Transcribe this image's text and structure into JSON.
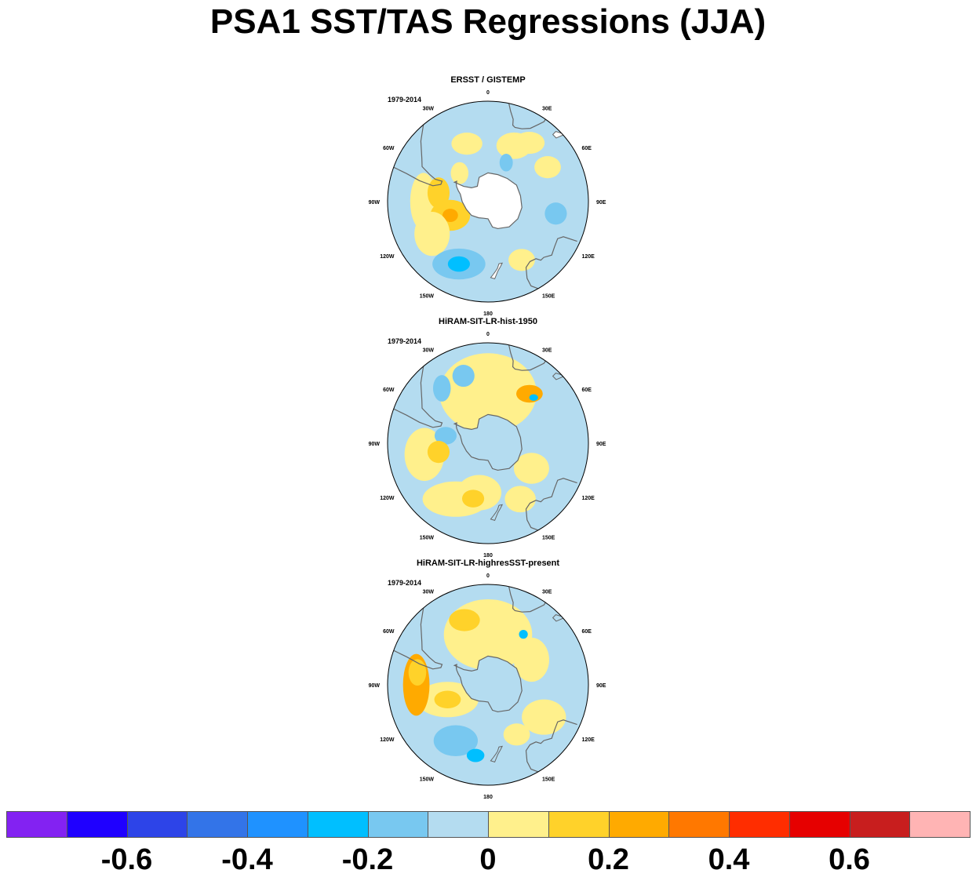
{
  "title": "PSA1 SST/TAS Regressions (JJA)",
  "chart_data": [
    {
      "type": "heatmap",
      "projection": "south-polar-stereographic",
      "title": "ERSST / GISTEMP",
      "period": "1979-2014",
      "lon_labels": [
        "0",
        "30E",
        "60E",
        "90E",
        "120E",
        "150E",
        "180",
        "150W",
        "120W",
        "90W",
        "60W",
        "30W"
      ],
      "colors": {
        "land": "#ffffff",
        "ocean_bg": "#b4dcf0"
      },
      "blobs": [
        {
          "lon": -20,
          "lat": -47,
          "rx": 0.07,
          "ry": 0.05,
          "value": 0.05
        },
        {
          "lon": 25,
          "lat": -47,
          "rx": 0.08,
          "ry": 0.06,
          "value": 0.05
        },
        {
          "lon": 35,
          "lat": -40,
          "rx": 0.07,
          "ry": 0.05,
          "value": 0.05
        },
        {
          "lon": -90,
          "lat": -45,
          "rx": 0.06,
          "ry": 0.13,
          "value": 0.05
        },
        {
          "lon": -80,
          "lat": -55,
          "rx": 0.05,
          "ry": 0.07,
          "value": 0.15
        },
        {
          "lon": -110,
          "lat": -62,
          "rx": 0.09,
          "ry": 0.07,
          "value": 0.15
        },
        {
          "lon": -110,
          "lat": -62,
          "rx": 0.035,
          "ry": 0.03,
          "value": 0.25
        },
        {
          "lon": -120,
          "lat": -45,
          "rx": 0.08,
          "ry": 0.1,
          "value": 0.05
        },
        {
          "lon": -155,
          "lat": -42,
          "rx": 0.12,
          "ry": 0.07,
          "value": -0.15
        },
        {
          "lon": -155,
          "lat": -42,
          "rx": 0.05,
          "ry": 0.035,
          "value": -0.25
        },
        {
          "lon": 100,
          "lat": -42,
          "rx": 0.05,
          "ry": 0.05,
          "value": -0.15
        },
        {
          "lon": 25,
          "lat": -60,
          "rx": 0.03,
          "ry": 0.04,
          "value": -0.15
        },
        {
          "lon": 150,
          "lat": -43,
          "rx": 0.06,
          "ry": 0.05,
          "value": 0.05
        },
        {
          "lon": -45,
          "lat": -62,
          "rx": 0.04,
          "ry": 0.05,
          "value": 0.05
        },
        {
          "lon": 60,
          "lat": -42,
          "rx": 0.06,
          "ry": 0.05,
          "value": 0.05
        }
      ]
    },
    {
      "type": "heatmap",
      "projection": "south-polar-stereographic",
      "title": "HiRAM-SIT-LR-hist-1950",
      "period": "1979-2014",
      "lon_labels": [
        "0",
        "30E",
        "60E",
        "90E",
        "120E",
        "150E",
        "180",
        "150W",
        "120W",
        "90W",
        "60W",
        "30W"
      ],
      "colors": {
        "land": "#b4dcf0",
        "ocean_bg": "#b4dcf0"
      },
      "blobs": [
        {
          "lon": 0,
          "lat": -55,
          "rx": 0.22,
          "ry": 0.18,
          "value": 0.05
        },
        {
          "lon": -100,
          "lat": -45,
          "rx": 0.09,
          "ry": 0.12,
          "value": 0.05
        },
        {
          "lon": -150,
          "lat": -45,
          "rx": 0.15,
          "ry": 0.08,
          "value": 0.05
        },
        {
          "lon": -170,
          "lat": -55,
          "rx": 0.1,
          "ry": 0.08,
          "value": 0.05
        },
        {
          "lon": 150,
          "lat": -45,
          "rx": 0.07,
          "ry": 0.06,
          "value": 0.05
        },
        {
          "lon": 120,
          "lat": -55,
          "rx": 0.08,
          "ry": 0.07,
          "value": 0.05
        },
        {
          "lon": 40,
          "lat": -45,
          "rx": 0.06,
          "ry": 0.04,
          "value": 0.25
        },
        {
          "lon": 45,
          "lat": -45,
          "rx": 0.02,
          "ry": 0.015,
          "value": -0.25
        },
        {
          "lon": -20,
          "lat": -40,
          "rx": 0.05,
          "ry": 0.05,
          "value": -0.15
        },
        {
          "lon": -40,
          "lat": -40,
          "rx": 0.04,
          "ry": 0.06,
          "value": -0.15
        },
        {
          "lon": -80,
          "lat": -60,
          "rx": 0.05,
          "ry": 0.04,
          "value": -0.15
        },
        {
          "lon": -100,
          "lat": -55,
          "rx": 0.05,
          "ry": 0.05,
          "value": 0.15
        },
        {
          "lon": -165,
          "lat": -50,
          "rx": 0.05,
          "ry": 0.04,
          "value": 0.15
        }
      ]
    },
    {
      "type": "heatmap",
      "projection": "south-polar-stereographic",
      "title": "HiRAM-SIT-LR-highresSST-present",
      "period": "1979-2014",
      "lon_labels": [
        "0",
        "30E",
        "60E",
        "90E",
        "120E",
        "150E",
        "180",
        "150W",
        "120W",
        "90W",
        "60W",
        "30W"
      ],
      "colors": {
        "land": "#b4dcf0",
        "ocean_bg": "#b4dcf0"
      },
      "blobs": [
        {
          "lon": 0,
          "lat": -55,
          "rx": 0.2,
          "ry": 0.16,
          "value": 0.05
        },
        {
          "lon": -20,
          "lat": -42,
          "rx": 0.07,
          "ry": 0.05,
          "value": 0.15
        },
        {
          "lon": -110,
          "lat": -60,
          "rx": 0.14,
          "ry": 0.08,
          "value": 0.05
        },
        {
          "lon": -110,
          "lat": -60,
          "rx": 0.06,
          "ry": 0.04,
          "value": 0.15
        },
        {
          "lon": -90,
          "lat": -40,
          "rx": 0.06,
          "ry": 0.14,
          "value": 0.25
        },
        {
          "lon": -80,
          "lat": -40,
          "rx": 0.04,
          "ry": 0.06,
          "value": 0.15
        },
        {
          "lon": 120,
          "lat": -45,
          "rx": 0.1,
          "ry": 0.08,
          "value": 0.05
        },
        {
          "lon": 60,
          "lat": -55,
          "rx": 0.08,
          "ry": 0.1,
          "value": 0.05
        },
        {
          "lon": 35,
          "lat": -47,
          "rx": 0.02,
          "ry": 0.02,
          "value": -0.25
        },
        {
          "lon": -150,
          "lat": -45,
          "rx": 0.1,
          "ry": 0.07,
          "value": -0.15
        },
        {
          "lon": -170,
          "lat": -40,
          "rx": 0.04,
          "ry": 0.03,
          "value": -0.25
        },
        {
          "lon": 150,
          "lat": -50,
          "rx": 0.06,
          "ry": 0.05,
          "value": 0.05
        }
      ]
    }
  ],
  "colorbar": {
    "levels": [
      -0.7,
      -0.6,
      -0.5,
      -0.4,
      -0.3,
      -0.2,
      -0.1,
      0,
      0.1,
      0.2,
      0.3,
      0.4,
      0.5,
      0.6,
      0.7
    ],
    "colors": [
      "#8322f2",
      "#1f00ff",
      "#2d44e8",
      "#3374e8",
      "#1f92ff",
      "#00bfff",
      "#78c8f0",
      "#b4dcf0",
      "#fff08c",
      "#ffd22a",
      "#ffaa00",
      "#ff7800",
      "#ff2d00",
      "#e60000",
      "#c81e1e",
      "#ffb4b4"
    ],
    "labels": [
      "-0.6",
      "-0.4",
      "-0.2",
      "0",
      "0.2",
      "0.4",
      "0.6"
    ],
    "label_values": [
      -0.6,
      -0.4,
      -0.2,
      0,
      0.2,
      0.4,
      0.6
    ]
  }
}
